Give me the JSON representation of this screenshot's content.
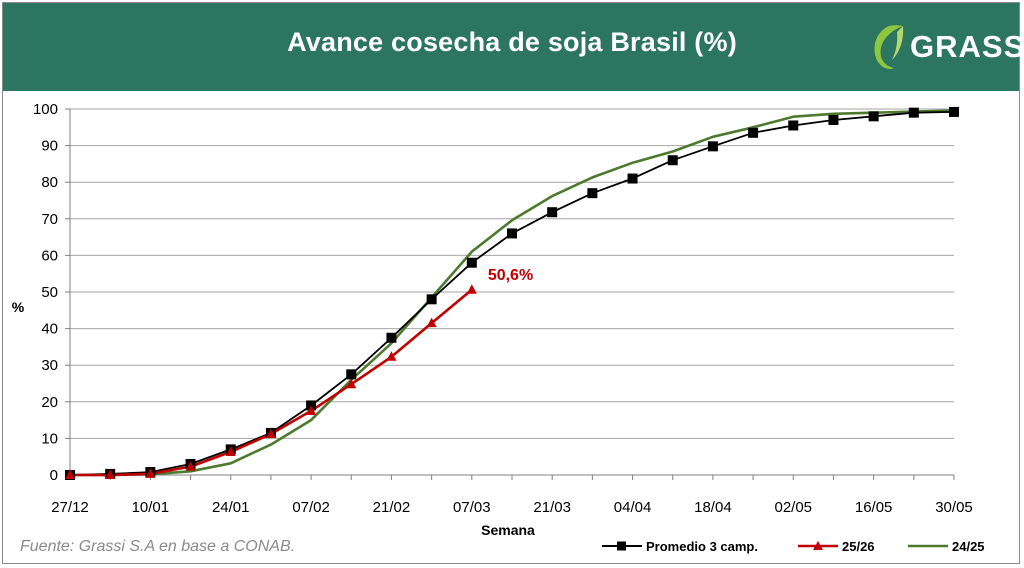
{
  "header": {
    "title": "Avance cosecha de soja Brasil (%)",
    "brand": "GRASSI",
    "logo_icon": "leaf-icon",
    "background_color": "#2b7561"
  },
  "footer": {
    "source": "Fuente: Grassi S.A en base a CONAB."
  },
  "chart_data": {
    "type": "line",
    "title": "Avance cosecha de soja Brasil (%)",
    "xlabel": "Semana",
    "ylabel": "%",
    "ylim": [
      0,
      100
    ],
    "yticks": [
      0,
      10,
      20,
      30,
      40,
      50,
      60,
      70,
      80,
      90,
      100
    ],
    "grid": "horizontal",
    "legend_position": "bottom-right",
    "x_tick_labels": [
      "27/12",
      "10/01",
      "24/01",
      "07/02",
      "21/02",
      "07/03",
      "21/03",
      "04/04",
      "18/04",
      "02/05",
      "16/05",
      "30/05"
    ],
    "x": [
      "27/12",
      "03/01",
      "10/01",
      "17/01",
      "24/01",
      "31/01",
      "07/02",
      "14/02",
      "21/02",
      "28/02",
      "07/03",
      "14/03",
      "21/03",
      "28/03",
      "04/04",
      "11/04",
      "18/04",
      "25/04",
      "02/05",
      "09/05",
      "16/05",
      "23/05",
      "30/05"
    ],
    "series": [
      {
        "name": "Promedio 3 camp.",
        "color": "#000000",
        "marker": "square",
        "values": [
          0,
          0.3,
          0.8,
          3,
          7,
          11.5,
          19,
          27.5,
          37.5,
          48,
          58,
          66,
          71.8,
          77,
          81,
          86,
          89.8,
          93.5,
          95.5,
          97,
          98,
          99,
          99.2
        ]
      },
      {
        "name": "25/26",
        "color": "#c00000",
        "marker": "triangle",
        "values": [
          0,
          0,
          0.3,
          2.3,
          6.3,
          11.2,
          17.5,
          24.8,
          32.3,
          41.5,
          50.6,
          null,
          null,
          null,
          null,
          null,
          null,
          null,
          null,
          null,
          null,
          null,
          null
        ]
      },
      {
        "name": "24/25",
        "color": "#4e7a2f",
        "marker": "none",
        "values": [
          0,
          0,
          0.2,
          1,
          3.2,
          8.3,
          15,
          26,
          36,
          48.5,
          61,
          69.6,
          76.2,
          81.3,
          85.3,
          88.4,
          92.4,
          95,
          97.9,
          98.7,
          99,
          99.3,
          99.6
        ]
      }
    ],
    "annotations": [
      {
        "text": "50,6%",
        "series": "25/26",
        "x": "07/03",
        "value": 50.6,
        "color": "#c00000"
      }
    ]
  }
}
